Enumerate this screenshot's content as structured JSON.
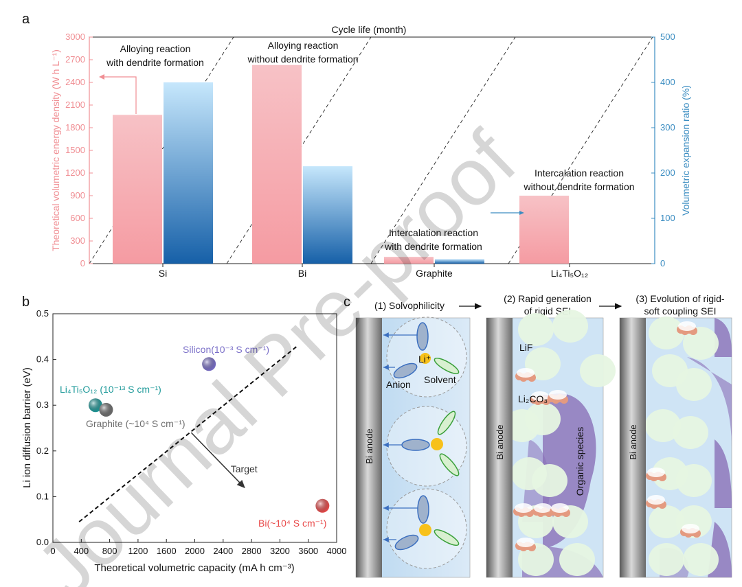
{
  "panels": {
    "a": "a",
    "b": "b",
    "c": "c"
  },
  "colors": {
    "energy_bar_top": "#f4a7ad",
    "energy_bar_bottom": "#f8d0d3",
    "expansion_bar_top": "#1a5fa6",
    "expansion_bar_bottom": "#bfe3fb",
    "left_axis": "#f08e93",
    "right_axis": "#3a8cc1",
    "li4ti5o12_point": "#1f9a9a",
    "graphite_point": "#6e6e6e",
    "silicon_point": "#7a6fc8",
    "bi_point": "#e94b4b",
    "electrolyte": "#cfe4f5",
    "lif": "#e6f5e2",
    "li2co3": "#e49a80",
    "organic": "#8a70b8"
  },
  "chart_data": [
    {
      "id": "a",
      "type": "bar",
      "top_axis_label": "Cycle life (month)",
      "ylabel": "Theoretical volumetric energy density (W h L⁻¹)",
      "y2label": "Volumetric expansion ratio (%)",
      "categories": [
        "Si",
        "Bi",
        "Graphite",
        "Li₄Ti₅O₁₂"
      ],
      "ylim": [
        0,
        3000
      ],
      "y2lim": [
        0,
        500
      ],
      "yticks": [
        0,
        300,
        600,
        900,
        1200,
        1500,
        1800,
        2100,
        2400,
        2700,
        3000
      ],
      "y2ticks": [
        0,
        100,
        200,
        300,
        400,
        500
      ],
      "series": [
        {
          "axis": "left",
          "values": [
            1970,
            2630,
            90,
            900
          ]
        },
        {
          "axis": "right",
          "values": [
            400,
            215,
            10,
            0
          ]
        }
      ],
      "annotations": [
        "Alloying reaction",
        "with dendrite formation",
        "Alloying reaction",
        "without dendrite formation",
        "Intercalation reaction",
        "with dendrite formation",
        "Intercalation reaction",
        "without dendrite formation"
      ]
    },
    {
      "id": "b",
      "type": "scatter",
      "xlabel": "Theoretical volumetric capacity (mA h cm⁻³)",
      "ylabel": "Li ion diffusion barrier (eV)",
      "xlim": [
        0,
        4000
      ],
      "ylim": [
        0,
        0.5
      ],
      "xticks": [
        0,
        400,
        800,
        1200,
        1600,
        2000,
        2400,
        2800,
        3200,
        3600,
        4000
      ],
      "yticks": [
        0.0,
        0.1,
        0.2,
        0.3,
        0.4,
        0.5
      ],
      "points": [
        {
          "label_main": "Li₄Ti₅O₁₂",
          "label_detail": "(10⁻¹³ S cm⁻¹)",
          "x": 600,
          "y": 0.3
        },
        {
          "label_main": "Graphite",
          "label_detail": "(~10⁴ S cm⁻¹)",
          "x": 750,
          "y": 0.29
        },
        {
          "label_main": "Silicon",
          "label_detail": "(10⁻³ S cm⁻¹)",
          "x": 2200,
          "y": 0.39
        },
        {
          "label_main": "Bi",
          "label_detail": "(~10⁴ S cm⁻¹)",
          "x": 3800,
          "y": 0.08
        }
      ],
      "trend_line": {
        "x": [
          370,
          3450
        ],
        "y": [
          0.045,
          0.43
        ]
      },
      "target_arrow": {
        "from": [
          1950,
          0.24
        ],
        "to": [
          2700,
          0.12
        ],
        "label": "Target"
      }
    }
  ],
  "schematic": {
    "step1": "(1) Solvophilicity",
    "step2_line1": "(2) Rapid generation",
    "step2_line2": "of rigid SEI",
    "step3_line1": "(3) Evolution  of rigid-",
    "step3_line2": "soft coupling SEI",
    "anode_label": "Bi anode",
    "li_ion": "Li⁺",
    "anion": "Anion",
    "solvent": "Solvent",
    "lif": "LiF",
    "li2co3": "Li₂CO₃",
    "organic": "Organic species"
  },
  "watermark": "Journal Pre-proof"
}
